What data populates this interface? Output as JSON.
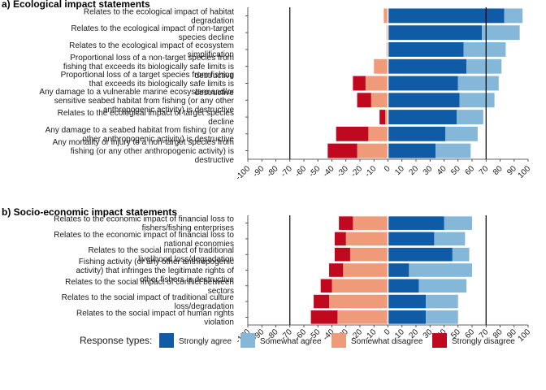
{
  "chart_data": {
    "type": "bar",
    "orientation": "horizontal",
    "stacked": "diverging",
    "colors": {
      "strongly_agree": "#0f5ba6",
      "somewhat_agree": "#85b7d9",
      "somewhat_disagree": "#ef9a78",
      "strongly_disagree": "#c0081f"
    },
    "legend": {
      "title": "Response types:",
      "placement": "bottom",
      "entries": [
        "Strongly agree",
        "Somewhat agree",
        "Somewhat disagree",
        "Strongly disagree"
      ]
    },
    "xlim": [
      -100,
      100
    ],
    "xticks": [
      -100,
      -90,
      -80,
      -70,
      -60,
      -50,
      -40,
      -30,
      -20,
      -10,
      0,
      10,
      20,
      30,
      40,
      50,
      60,
      70,
      80,
      90,
      100
    ],
    "reference_lines": [
      -70,
      70
    ],
    "panels": [
      {
        "title": "a) Ecological impact statements",
        "categories": [
          "Relates to the ecological impact of habitat degradation",
          "Relates to the ecological impact of non-target species decline",
          "Relates to the ecological impact of ecosystem simplification",
          "Proportional loss of a non-target species from fishing that exceeds its biologically safe limits is destructive",
          "Proportional loss of a target species from fishing that exceeds its biologically safe limits is destructive",
          "Any damage to a vulnerable marine ecosystem and/or sensitive seabed habitat from fishing (or any other anthropogenic activity) is destructive",
          "Relates to the ecological impact of target species decline",
          "Any damage to a seabed habitat from fishing (or any other anthropogenic activity) is destructive",
          "Any mortality or injury to a non-target species from fishing (or any other anthropogenic activity) is destructive"
        ],
        "series": [
          {
            "name": "Strongly agree",
            "values": [
              83,
              67,
              54,
              56,
              50,
              51,
              49,
              41,
              34
            ]
          },
          {
            "name": "Somewhat agree",
            "values": [
              13,
              27,
              30,
              25,
              29,
              25,
              19,
              23,
              25
            ]
          },
          {
            "name": "Somewhat disagree",
            "values": [
              -3,
              -1,
              -1,
              -10,
              -16,
              -12,
              -2,
              -14,
              -22
            ]
          },
          {
            "name": "Strongly disagree",
            "values": [
              0,
              0,
              0,
              0,
              -9,
              -10,
              -4,
              -23,
              -21
            ]
          }
        ]
      },
      {
        "title": "b) Socio-economic impact statements",
        "categories": [
          "Relates to the economic impact of financial loss to fishers/fishing enterprises",
          "Relates to the economic impact of financial loss to national economies",
          "Relates to the social impact of traditional livelihood loss/degradation",
          "Fishing activity (or any other anthropogenic activity) that infringes the legitimate rights of other fishers is destructive",
          "Relates to the social impact of conflict between sectors",
          "Relates to the social impact of traditional culture loss/degradation",
          "Relates to the social impact of human rights violation"
        ],
        "series": [
          {
            "name": "Strongly agree",
            "values": [
              40,
              33,
              46,
              15,
              22,
              27,
              27
            ]
          },
          {
            "name": "Somewhat agree",
            "values": [
              20,
              22,
              12,
              45,
              34,
              23,
              23
            ]
          },
          {
            "name": "Somewhat disagree",
            "values": [
              -25,
              -30,
              -27,
              -32,
              -40,
              -42,
              -36
            ]
          },
          {
            "name": "Strongly disagree",
            "values": [
              -10,
              -8,
              -11,
              -10,
              -8,
              -11,
              -19
            ]
          }
        ]
      }
    ]
  }
}
